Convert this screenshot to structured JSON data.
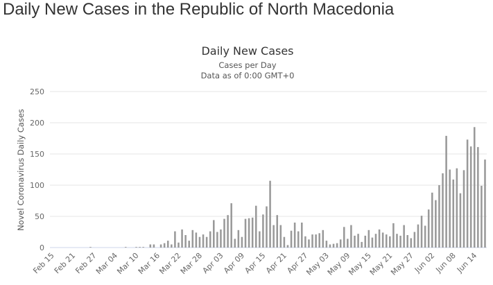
{
  "page": {
    "title": "Daily New Cases in the Republic of North Macedonia"
  },
  "chart_data": {
    "type": "bar",
    "title": "Daily New Cases",
    "subtitle": "Cases per Day",
    "subtitle2": "Data as of 0:00 GMT+0",
    "xlabel": "",
    "ylabel": "Novel Coronavirus Daily Cases",
    "ylim": [
      0,
      250
    ],
    "y_ticks": [
      0,
      50,
      100,
      150,
      200,
      250
    ],
    "x_start": "2020-02-15",
    "x_ticks": [
      "Feb 15",
      "Feb 21",
      "Feb 27",
      "Mar 04",
      "Mar 10",
      "Mar 16",
      "Mar 22",
      "Mar 28",
      "Apr 03",
      "Apr 09",
      "Apr 15",
      "Apr 21",
      "Apr 27",
      "May 03",
      "May 09",
      "May 15",
      "May 21",
      "May 27",
      "Jun 02",
      "Jun 08",
      "Jun 14"
    ],
    "grid": true,
    "bar_color": "#999999",
    "values": [
      0,
      0,
      0,
      0,
      0,
      0,
      0,
      0,
      0,
      0,
      0,
      1,
      0,
      0,
      0,
      0,
      0,
      0,
      0,
      0,
      0,
      1,
      0,
      0,
      1,
      1,
      1,
      0,
      5,
      5,
      0,
      5,
      7,
      11,
      5,
      26,
      8,
      29,
      20,
      11,
      28,
      24,
      17,
      21,
      17,
      26,
      44,
      25,
      29,
      46,
      52,
      71,
      14,
      28,
      17,
      46,
      47,
      48,
      67,
      26,
      53,
      66,
      107,
      36,
      52,
      36,
      17,
      4,
      27,
      40,
      26,
      40,
      18,
      13,
      21,
      21,
      23,
      28,
      11,
      5,
      6,
      7,
      13,
      33,
      14,
      36,
      19,
      22,
      9,
      19,
      28,
      16,
      22,
      29,
      24,
      21,
      18,
      39,
      22,
      19,
      36,
      20,
      15,
      25,
      37,
      51,
      35,
      61,
      88,
      76,
      100,
      119,
      179,
      125,
      109,
      127,
      87,
      124,
      173,
      162,
      193,
      161,
      99,
      141
    ]
  }
}
